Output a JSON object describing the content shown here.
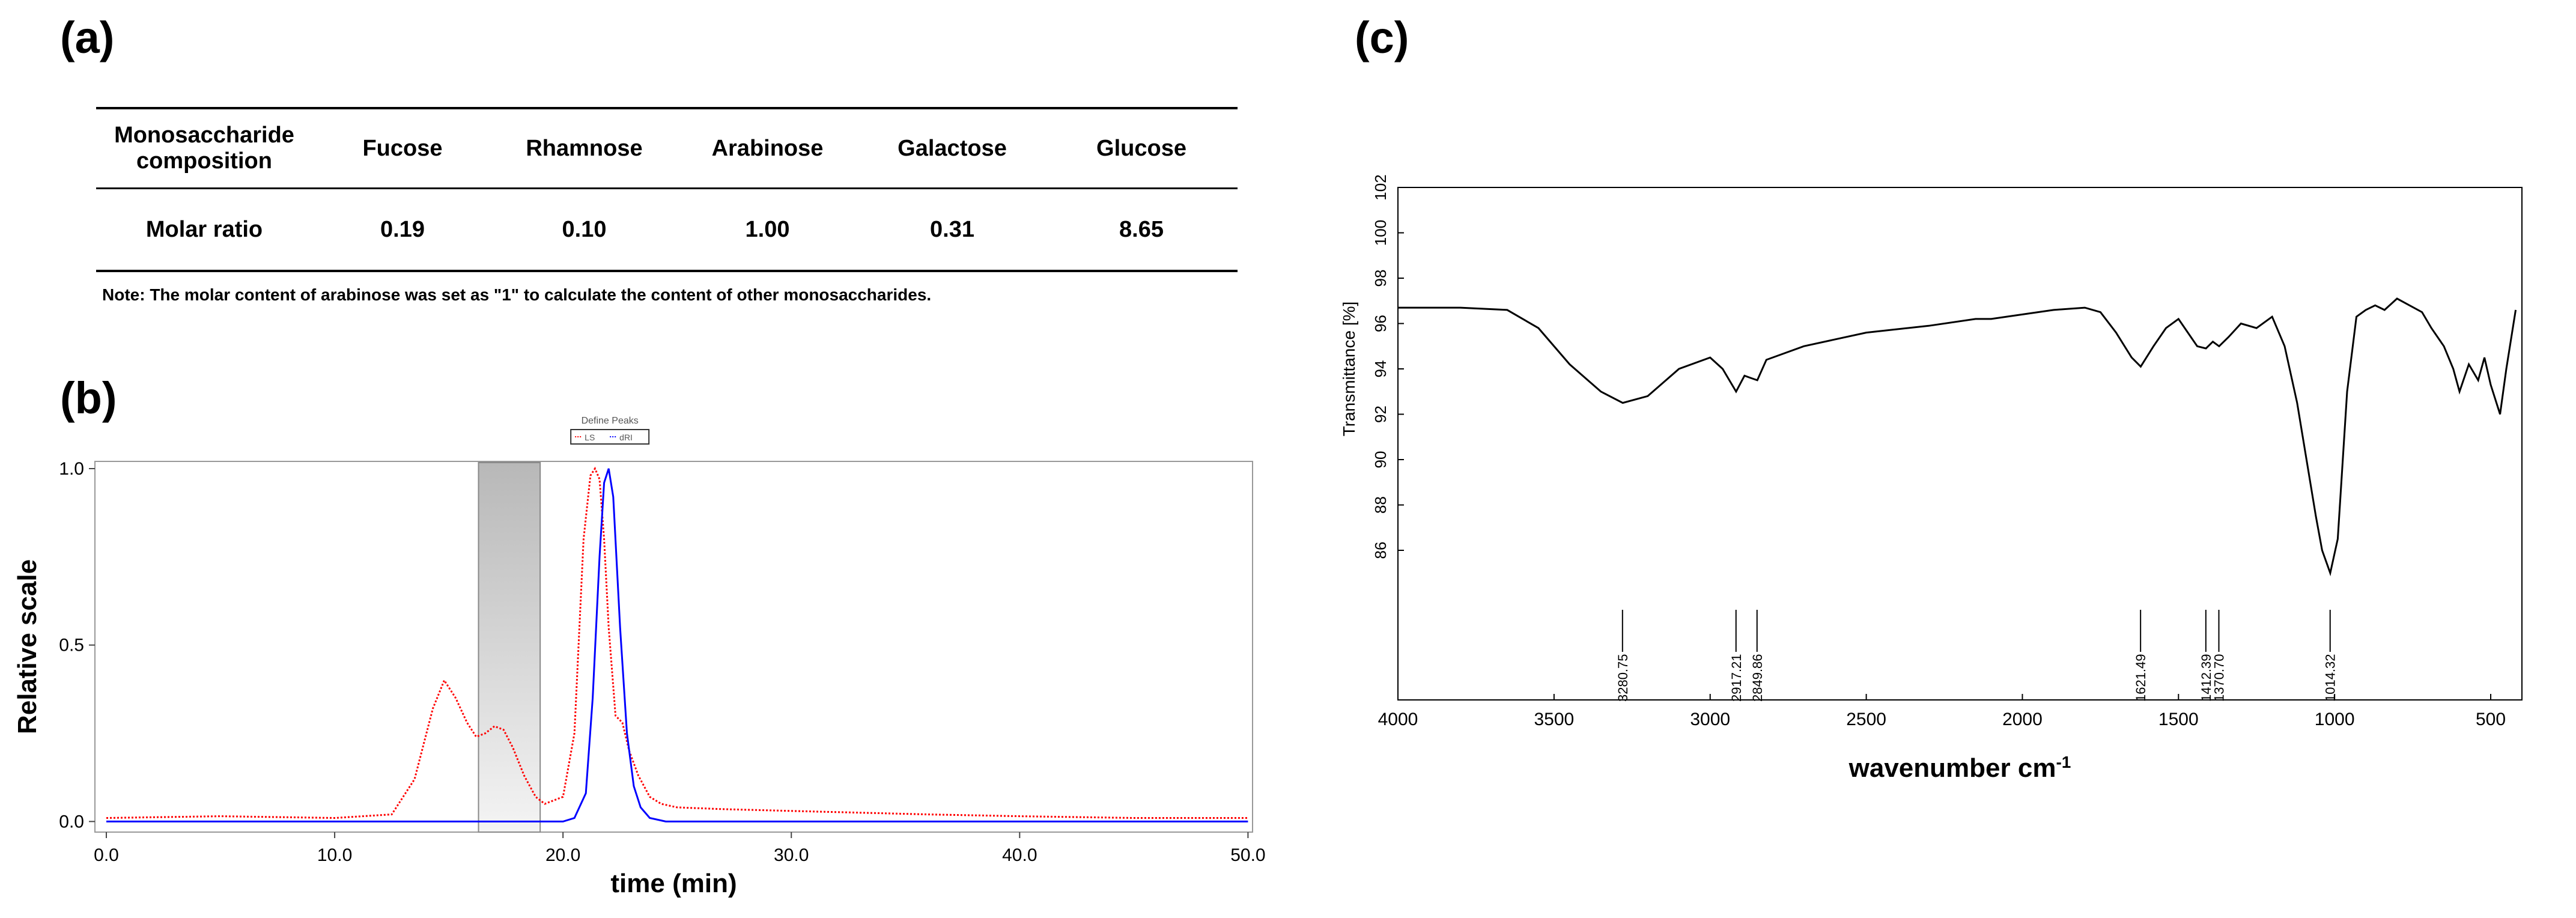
{
  "panels": {
    "a": "(a)",
    "b": "(b)",
    "c": "(c)"
  },
  "table": {
    "header_label": [
      "Monosaccharide",
      "composition"
    ],
    "columns": [
      "Fucose",
      "Rhamnose",
      "Arabinose",
      "Galactose",
      "Glucose"
    ],
    "row_label": "Molar ratio",
    "values": [
      "0.19",
      "0.10",
      "1.00",
      "0.31",
      "8.65"
    ],
    "note": "Note: The molar content of arabinose was set as  \"1\" to calculate the content of other monosaccharides."
  },
  "chart_data": [
    {
      "type": "line",
      "panel": "(b)",
      "title": "",
      "legend_title": "Define Peaks",
      "legend_entries": [
        "LS",
        "dRI"
      ],
      "xlabel": "time (min)",
      "ylabel": "Relative scale",
      "xlim": [
        -0.5,
        50.2
      ],
      "ylim": [
        -0.03,
        1.0
      ],
      "x_ticks": [
        "0.0",
        "10.0",
        "20.0",
        "30.0",
        "40.0",
        "50.0"
      ],
      "y_ticks": [
        "0.0",
        "0.5",
        "1.0"
      ],
      "shaded_region": [
        16.3,
        19.0
      ],
      "colors": {
        "LS": "#ff0000",
        "dRI": "#0000ff",
        "shade": "#c0c0c0"
      },
      "series": [
        {
          "name": "LS",
          "x": [
            0,
            5,
            10,
            12.5,
            13.5,
            14.3,
            14.8,
            15.3,
            15.8,
            16.2,
            16.6,
            17.0,
            17.4,
            17.8,
            18.3,
            18.8,
            19.2,
            20.0,
            20.5,
            20.9,
            21.2,
            21.4,
            21.6,
            21.8,
            22.0,
            22.3,
            22.6,
            22.9,
            23.3,
            23.8,
            24.3,
            25.0,
            27.0,
            30.0,
            33.0,
            36.0,
            40.0,
            45.0,
            50.0
          ],
          "y": [
            0.01,
            0.015,
            0.01,
            0.02,
            0.12,
            0.32,
            0.4,
            0.35,
            0.28,
            0.24,
            0.25,
            0.27,
            0.26,
            0.21,
            0.13,
            0.07,
            0.05,
            0.07,
            0.25,
            0.8,
            0.98,
            1.0,
            0.97,
            0.8,
            0.55,
            0.3,
            0.28,
            0.2,
            0.13,
            0.07,
            0.05,
            0.04,
            0.035,
            0.03,
            0.025,
            0.02,
            0.015,
            0.01,
            0.01
          ]
        },
        {
          "name": "dRI",
          "x": [
            0,
            10,
            20,
            20.5,
            21.0,
            21.3,
            21.6,
            21.8,
            22.0,
            22.2,
            22.5,
            22.8,
            23.1,
            23.4,
            23.8,
            24.5,
            30,
            40,
            50
          ],
          "y": [
            0,
            0,
            0,
            0.01,
            0.08,
            0.35,
            0.75,
            0.96,
            1.0,
            0.92,
            0.55,
            0.25,
            0.1,
            0.04,
            0.01,
            0,
            0,
            0,
            0
          ]
        }
      ]
    },
    {
      "type": "line",
      "panel": "(c)",
      "title": "",
      "xlabel": "wavenumber cm",
      "xlabel_superscript": "-1",
      "ylabel": "Transmittance [%]",
      "xlim": [
        4000,
        400
      ],
      "ylim": [
        84,
        102
      ],
      "x_ticks": [
        "4000",
        "3500",
        "3000",
        "2500",
        "2000",
        "1500",
        "1000",
        "500"
      ],
      "y_ticks": [
        "86",
        "88",
        "90",
        "92",
        "94",
        "96",
        "98",
        "100",
        "102"
      ],
      "series": [
        {
          "name": "",
          "x": [
            4000,
            3800,
            3650,
            3550,
            3450,
            3350,
            3280,
            3200,
            3100,
            3000,
            2960,
            2917,
            2890,
            2870,
            2849,
            2820,
            2700,
            2500,
            2300,
            2150,
            2100,
            2000,
            1900,
            1800,
            1750,
            1700,
            1650,
            1621,
            1580,
            1540,
            1500,
            1470,
            1440,
            1412,
            1390,
            1370,
            1340,
            1300,
            1250,
            1200,
            1160,
            1120,
            1090,
            1060,
            1040,
            1014,
            990,
            960,
            930,
            900,
            870,
            840,
            800,
            760,
            720,
            690,
            650,
            620,
            600,
            570,
            540,
            520,
            500,
            470,
            450,
            420
          ],
          "y": [
            96.7,
            96.7,
            96.6,
            95.8,
            94.2,
            93.0,
            92.5,
            92.8,
            94.0,
            94.5,
            94.0,
            93.0,
            93.7,
            93.6,
            93.5,
            94.4,
            95.0,
            95.6,
            95.9,
            96.2,
            96.2,
            96.4,
            96.6,
            96.7,
            96.5,
            95.6,
            94.5,
            94.1,
            95.0,
            95.8,
            96.2,
            95.6,
            95.0,
            94.9,
            95.2,
            95.0,
            95.4,
            96.0,
            95.8,
            96.3,
            95.0,
            92.5,
            90.0,
            87.5,
            86.0,
            85.0,
            86.5,
            93.0,
            96.3,
            96.6,
            96.8,
            96.6,
            97.1,
            96.8,
            96.5,
            95.8,
            95.0,
            94.0,
            93.0,
            94.2,
            93.5,
            94.5,
            93.3,
            92.0,
            94.0,
            96.6
          ]
        }
      ],
      "peak_labels": [
        "3280.75",
        "2917.21",
        "2849.86",
        "1621.49",
        "1412.39",
        "1370.70",
        "1014.32"
      ],
      "peak_positions": [
        3280.75,
        2917.21,
        2849.86,
        1621.49,
        1412.39,
        1370.7,
        1014.32
      ]
    }
  ]
}
